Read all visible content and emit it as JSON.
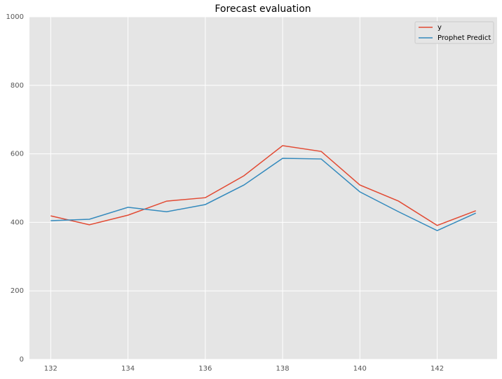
{
  "chart_data": {
    "type": "line",
    "title": "Forecast evaluation",
    "x": [
      132,
      133,
      134,
      135,
      136,
      137,
      138,
      139,
      140,
      141,
      142,
      143
    ],
    "series": [
      {
        "name": "y",
        "color": "#E24A33",
        "values": [
          419,
          393,
          421,
          462,
          472,
          536,
          624,
          607,
          509,
          462,
          391,
          434
        ]
      },
      {
        "name": "Prophet Predict",
        "color": "#348ABD",
        "values": [
          405,
          409,
          444,
          431,
          452,
          509,
          587,
          585,
          489,
          431,
          376,
          427
        ]
      }
    ],
    "xlim": [
      131.45,
      143.55
    ],
    "xticks": [
      132,
      134,
      136,
      138,
      140,
      142
    ],
    "ylim": [
      0,
      1000
    ],
    "yticks": [
      0,
      200,
      400,
      600,
      800,
      1000
    ],
    "grid": true,
    "legend": "upper right"
  }
}
